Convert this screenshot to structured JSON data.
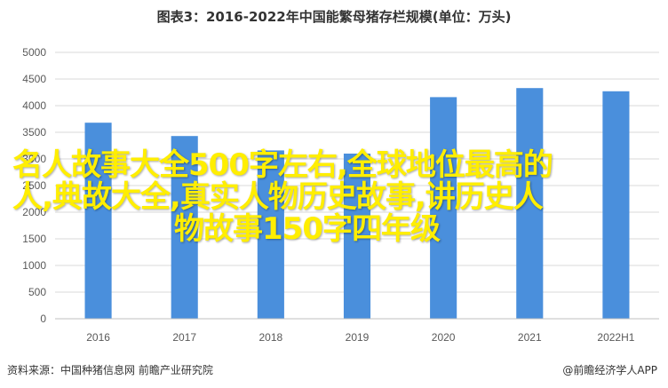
{
  "chart_data": {
    "type": "bar",
    "title": "图表3：2016-2022年中国能繁母猪存栏规模(单位：万头)",
    "categories": [
      "2016",
      "2017",
      "2018",
      "2019",
      "2020",
      "2021",
      "2022H1"
    ],
    "values": [
      3680,
      3430,
      3160,
      3100,
      4160,
      4330,
      4270
    ],
    "ylim": [
      0,
      5000
    ],
    "yticks": [
      0,
      500,
      1000,
      1500,
      2000,
      2500,
      3000,
      3500,
      4000,
      4500,
      5000
    ],
    "grid": true,
    "bar_color": "#4a8fdc"
  },
  "overlay": {
    "line1": "名人故事大全500字左右,全球地位最高的",
    "line2": "人,典故大全,真实人物历史故事,讲历史人",
    "line3": "物故事150字四年级"
  },
  "footer": {
    "source": "资料来源：中国种猪信息网 前瞻产业研究院",
    "brand": "@前瞻经济学人APP"
  }
}
